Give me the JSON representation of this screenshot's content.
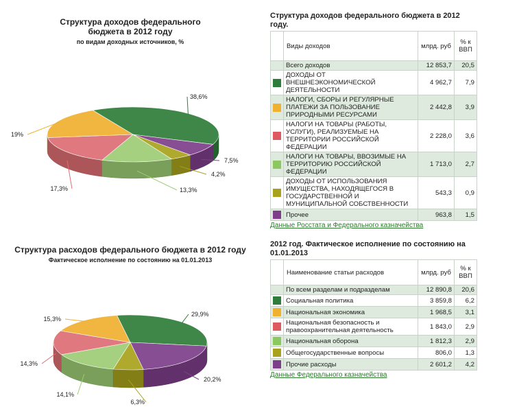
{
  "chart_data": [
    {
      "type": "pie",
      "title": "Структура доходов федерального бюджета в 2012 году",
      "subtitle": "по видам доходных источников, %",
      "categories": [
        "Доходы от внешнеэкономической деятельности",
        "Прочее",
        "Доходы от использования имущества",
        "Налоги на товары, ввозимые на территорию РФ",
        "Налоги на товары, реализуемые на территории РФ",
        "Налоги, сборы и платежи за природные ресурсы"
      ],
      "values": [
        38.6,
        7.5,
        4.2,
        13.3,
        17.3,
        19
      ],
      "labels": [
        "38,6%",
        "7,5%",
        "4,2%",
        "13,3%",
        "17,3%",
        "19%"
      ],
      "colors": [
        "#2e7d3a",
        "#7d3f8a",
        "#a8a21c",
        "#9ccc74",
        "#dd6e74",
        "#f0b030"
      ]
    },
    {
      "type": "pie",
      "title": "Структура расходов федерального бюджета в 2012 году",
      "subtitle": "Фактическое исполнение по состоянию на 01.01.2013",
      "categories": [
        "Социальная политика",
        "Прочие расходы",
        "Общегосударственные вопросы",
        "Национальная оборона",
        "Национальная безопасность",
        "Национальная экономика"
      ],
      "values": [
        29.9,
        20.2,
        6.3,
        14.1,
        14.3,
        15.3
      ],
      "labels": [
        "29,9%",
        "20,2%",
        "6,3%",
        "14,1%",
        "14,3%",
        "15,3%"
      ],
      "colors": [
        "#2e7d3a",
        "#7d3f8a",
        "#a8a21c",
        "#9ccc74",
        "#dd6e74",
        "#f0b030"
      ]
    }
  ],
  "income_chart": {
    "title_line1": "Структура доходов федерального",
    "title_line2": "бюджета в 2012 году",
    "subtitle": "по видам доходных источников, %"
  },
  "expense_chart": {
    "title": "Структура расходов федерального бюджета в 2012 году",
    "subtitle": "Фактическое исполнение по состоянию на 01.01.2013"
  },
  "income_table": {
    "title": "Структура доходов федерального бюджета в 2012 году.",
    "col_name": "Виды доходов",
    "col_value": "млрд. руб",
    "col_pct": "% к ВВП",
    "total": {
      "name": "Всего доходов",
      "value": "12 853,7",
      "pct": "20,5"
    },
    "rows": [
      {
        "name": "ДОХОДЫ ОТ ВНЕШНЕЭКОНОМИЧЕСКОЙ ДЕЯТЕЛЬНОСТИ",
        "value": "4 962,7",
        "pct": "7,9",
        "color": "#2e7d3a"
      },
      {
        "name": "НАЛОГИ, СБОРЫ И РЕГУЛЯРНЫЕ ПЛАТЕЖИ ЗА ПОЛЬЗОВАНИЕ ПРИРОДНЫМИ РЕСУРСАМИ",
        "value": "2 442,8",
        "pct": "3,9",
        "color": "#f0b030"
      },
      {
        "name": "НАЛОГИ НА ТОВАРЫ (РАБОТЫ, УСЛУГИ), РЕАЛИЗУЕМЫЕ НА ТЕРРИТОРИИ РОССИЙСКОЙ ФЕДЕРАЦИИ",
        "value": "2 228,0",
        "pct": "3,6",
        "color": "#dd5a60"
      },
      {
        "name": "НАЛОГИ НА ТОВАРЫ, ВВОЗИМЫЕ НА ТЕРРИТОРИЮ РОССИЙСКОЙ ФЕДЕРАЦИИ",
        "value": "1 713,0",
        "pct": "2,7",
        "color": "#8cc860"
      },
      {
        "name": "ДОХОДЫ ОТ ИСПОЛЬЗОВАНИЯ ИМУЩЕСТВА, НАХОДЯЩЕГОСЯ В ГОСУДАРСТВЕННОЙ И МУНИЦИПАЛЬНОЙ СОБСТВЕННОСТИ",
        "value": "543,3",
        "pct": "0,9",
        "color": "#a8a21c"
      },
      {
        "name": "Прочее",
        "value": "963,8",
        "pct": "1,5",
        "color": "#7d3f8a"
      }
    ],
    "source": "Данные Росстата и Федерального казначейства"
  },
  "expense_table": {
    "title": "2012 год. Фактическое исполнение по состоянию на 01.01.2013",
    "col_name": "Наименование статьи расходов",
    "col_value": "млрд. руб",
    "col_pct": "% к ВВП",
    "total": {
      "name": "По всем разделам и подразделам",
      "value": "12 890,8",
      "pct": "20,6"
    },
    "rows": [
      {
        "name": "Социальная политика",
        "value": "3 859,8",
        "pct": "6,2",
        "color": "#2e7d3a"
      },
      {
        "name": "Национальная экономика",
        "value": "1 968,5",
        "pct": "3,1",
        "color": "#f0b030"
      },
      {
        "name": "Национальная безопасность и правоохранительная деятельность",
        "value": "1 843,0",
        "pct": "2,9",
        "color": "#dd5a60"
      },
      {
        "name": "Национальная оборона",
        "value": "1 812,3",
        "pct": "2,9",
        "color": "#8cc860"
      },
      {
        "name": "Общегосударственные вопросы",
        "value": "806,0",
        "pct": "1,3",
        "color": "#a8a21c"
      },
      {
        "name": "Прочие расходы",
        "value": "2 601,2",
        "pct": "4,2",
        "color": "#7d3f8a"
      }
    ],
    "source": "Данные Федерального казначейства"
  }
}
